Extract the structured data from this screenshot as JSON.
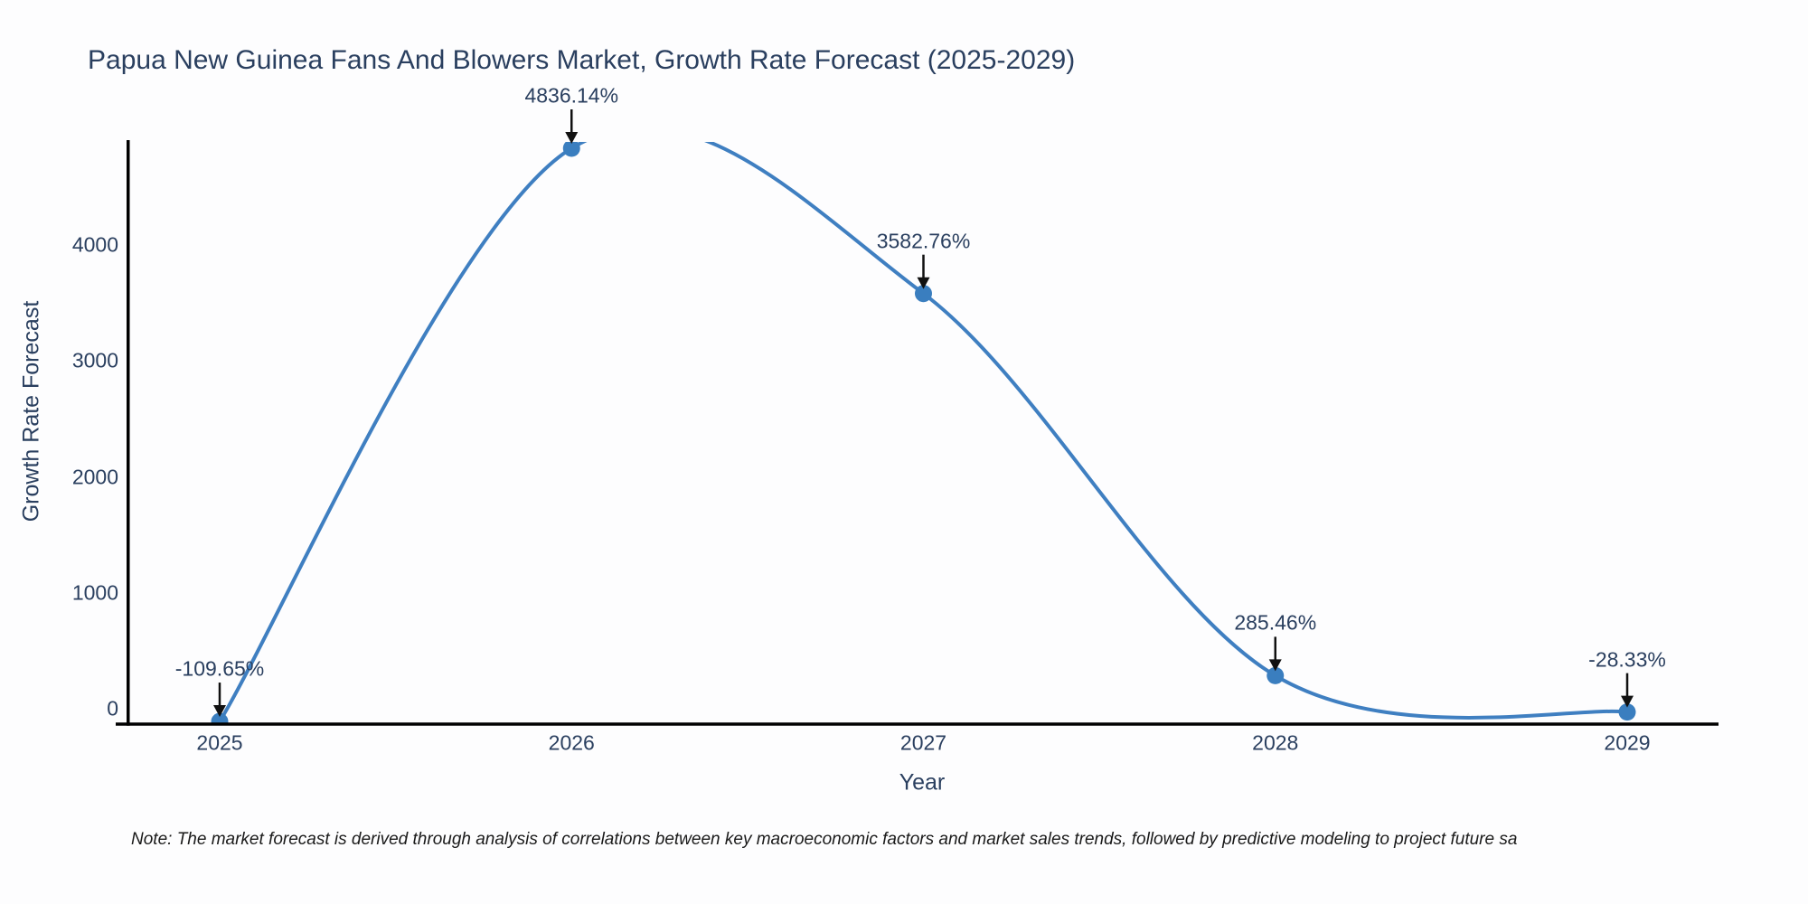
{
  "title": "Papua New Guinea Fans And Blowers Market, Growth Rate Forecast (2025-2029)",
  "note": "Note: The market forecast is derived through analysis of correlations between key macroeconomic factors and market sales trends, followed by predictive modeling to project future sa",
  "chart_data": {
    "type": "line",
    "line_shape": "spline",
    "title": "Papua New Guinea Fans And Blowers Market, Growth Rate Forecast (2025-2029)",
    "xlabel": "Year",
    "ylabel": "Growth Rate Forecast",
    "x": [
      "2025",
      "2026",
      "2027",
      "2028",
      "2029"
    ],
    "points": [
      {
        "year": "2025",
        "value": -109.65,
        "label": "-109.65%"
      },
      {
        "year": "2026",
        "value": 4836.14,
        "label": "4836.14%"
      },
      {
        "year": "2027",
        "value": 3582.76,
        "label": "3582.76%"
      },
      {
        "year": "2028",
        "value": 285.46,
        "label": "285.46%"
      },
      {
        "year": "2029",
        "value": -28.33,
        "label": "-28.33%"
      }
    ],
    "yticks": [
      0,
      1000,
      2000,
      3000,
      4000
    ],
    "ylim": [
      -133,
      4890
    ],
    "grid": false,
    "legend_visible": false,
    "colors": {
      "line": "#3f7fc1",
      "marker": "#3a7ebf",
      "text": "#2a3f5f",
      "axis_line": "#000000",
      "arrow": "#111111",
      "background": "#fdfdfe"
    }
  }
}
